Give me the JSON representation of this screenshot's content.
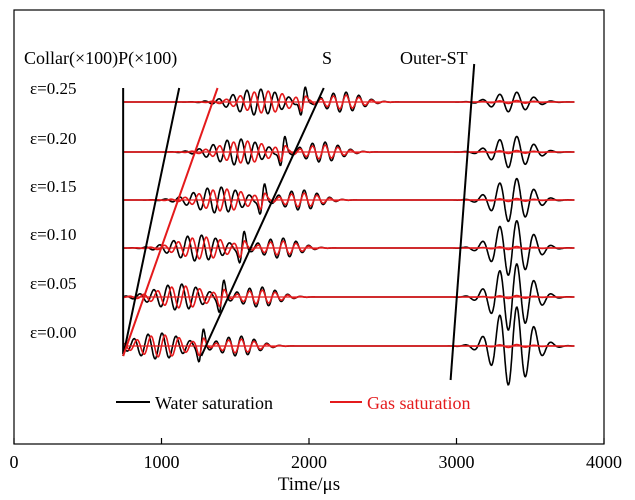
{
  "chart_data": {
    "type": "line",
    "title": "",
    "xlabel": "Time/μs",
    "ylabel": "",
    "xlim": [
      0,
      4000
    ],
    "x_ticks": [
      0,
      1000,
      2000,
      3000,
      4000
    ],
    "x_tick_labels": [
      "0",
      "1000",
      "2000",
      "3000",
      "4000"
    ],
    "rows": [
      {
        "label": "ε=0.25",
        "epsilon": 0.25
      },
      {
        "label": "ε=0.20",
        "epsilon": 0.2
      },
      {
        "label": "ε=0.15",
        "epsilon": 0.15
      },
      {
        "label": "ε=0.10",
        "epsilon": 0.1
      },
      {
        "label": "ε=0.05",
        "epsilon": 0.05
      },
      {
        "label": "ε=0.00",
        "epsilon": 0.0
      }
    ],
    "series": [
      {
        "name": "Water saturation",
        "color": "#000000"
      },
      {
        "name": "Gas saturation",
        "color": "#e41a1c"
      }
    ],
    "annotations": {
      "collar_p": "Collar(×100)P(×100)",
      "s": "S",
      "outer_st": "Outer-ST"
    },
    "moveout_lines": [
      {
        "name": "collar-start",
        "color": "#000000",
        "x": [
          740,
          740
        ]
      },
      {
        "name": "p-water",
        "color": "#000000",
        "x": [
          740,
          1120
        ]
      },
      {
        "name": "p-gas",
        "color": "#e41a1c",
        "x": [
          740,
          1380
        ]
      },
      {
        "name": "s",
        "color": "#000000",
        "x": [
          1270,
          2100
        ]
      },
      {
        "name": "outer-st",
        "color": "#000000",
        "x": [
          2960,
          3120
        ]
      }
    ]
  }
}
